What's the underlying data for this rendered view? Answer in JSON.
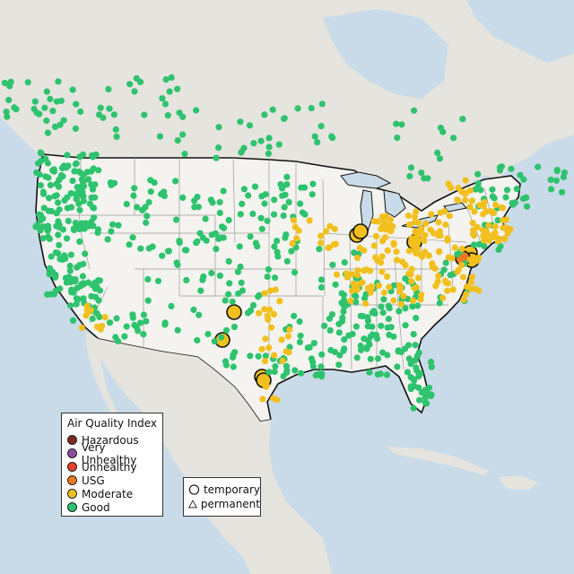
{
  "map": {
    "legend": {
      "title": "Air Quality Index",
      "categories": [
        {
          "label": "Hazardous",
          "color": "#7e2b1e"
        },
        {
          "label": "Very Unhealthy",
          "color": "#8a4fa2"
        },
        {
          "label": "Unhealthy",
          "color": "#e8402f"
        },
        {
          "label": "USG",
          "color": "#ea7a1e"
        },
        {
          "label": "Moderate",
          "color": "#f2c01e"
        },
        {
          "label": "Good",
          "color": "#2ec36e"
        }
      ]
    },
    "monitor_types": {
      "temporary": "temporary",
      "permanent": "permanent"
    },
    "colors": {
      "water": "#c9dbe8",
      "land": "#e8e6e1",
      "mountain": "#d9d4ca",
      "conus": "#f7f6f3",
      "state_border": "#9a9a9a",
      "national_border": "#111111"
    }
  }
}
